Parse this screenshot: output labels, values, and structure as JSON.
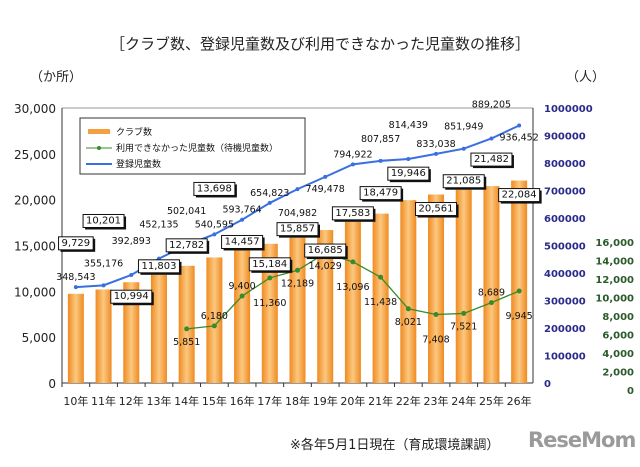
{
  "chart_data": {
    "type": "bar",
    "title": "［クラブ数、登録児童数及び利用できなかった児童数の推移］",
    "left_unit": "（か所）",
    "right_unit": "（人）",
    "categories": [
      "10年",
      "11年",
      "12年",
      "13年",
      "14年",
      "15年",
      "16年",
      "17年",
      "18年",
      "19年",
      "20年",
      "21年",
      "22年",
      "23年",
      "24年",
      "25年",
      "26年"
    ],
    "series": [
      {
        "name": "クラブ数",
        "type": "bar",
        "axis": "left",
        "color": "#f5a040",
        "values": [
          9729,
          10201,
          10994,
          11803,
          12782,
          13698,
          14457,
          15184,
          15857,
          16685,
          17583,
          18479,
          19946,
          20561,
          21085,
          21482,
          22084
        ]
      },
      {
        "name": "利用できなかった児童数（待機児童数）",
        "type": "line",
        "axis": "right-green",
        "color": "#3a8a2a",
        "values": [
          null,
          null,
          null,
          null,
          5851,
          6180,
          9400,
          11360,
          12189,
          14029,
          13096,
          11438,
          8021,
          7408,
          7521,
          8689,
          9945
        ]
      },
      {
        "name": "登録児童数",
        "type": "line",
        "axis": "right-blue",
        "color": "#3a6fe0",
        "values": [
          348543,
          355176,
          392893,
          452135,
          502041,
          540595,
          593764,
          654823,
          704982,
          749478,
          794922,
          807857,
          814439,
          833038,
          851949,
          889205,
          936452
        ]
      }
    ],
    "left_axis": {
      "range": [
        0,
        30000
      ],
      "ticks": [
        "0",
        "5,000",
        "10,000",
        "15,000",
        "20,000",
        "25,000",
        "30,000"
      ]
    },
    "right_blue_axis": {
      "range": [
        0,
        1000000
      ],
      "ticks": [
        "0",
        "100000",
        "200000",
        "300000",
        "400000",
        "500000",
        "600000",
        "700000",
        "800000",
        "900000",
        "1000000"
      ],
      "color": "#2a2a8a"
    },
    "right_green_axis": {
      "range": [
        0,
        16000
      ],
      "ticks": [
        "0",
        "2,000",
        "4,000",
        "6,000",
        "8,000",
        "10,000",
        "12,000",
        "14,000",
        "16,000"
      ],
      "color": "#2a5a2a"
    },
    "legend": "top-left",
    "grid": false
  },
  "footnote": "※各年5月1日現在（育成環境課調）",
  "watermark": "ReseMom"
}
